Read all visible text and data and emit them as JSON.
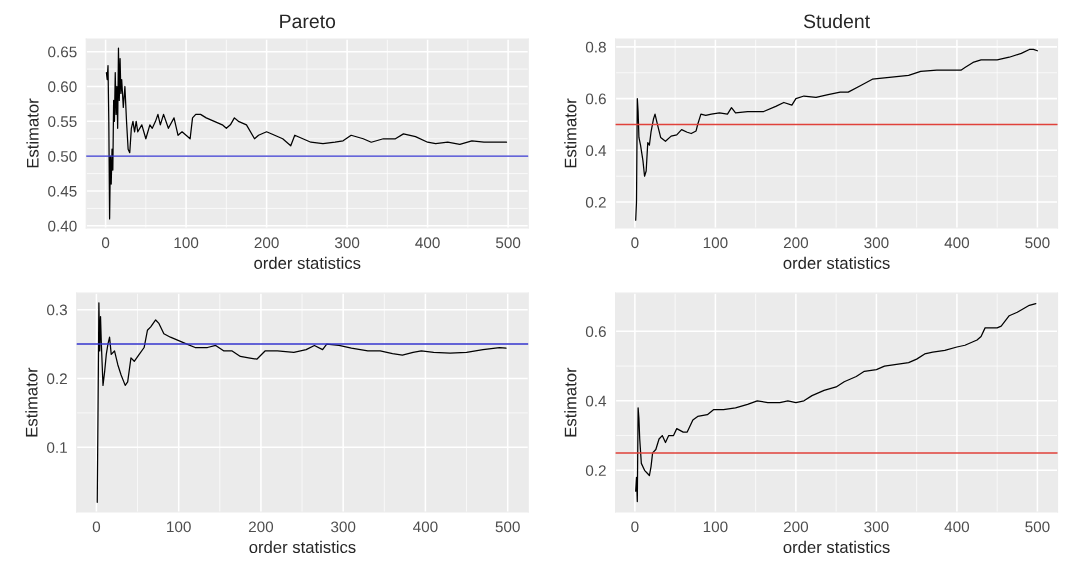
{
  "chart_data": [
    {
      "type": "line",
      "title": "Pareto",
      "xlabel": "order statistics",
      "ylabel": "Estimator",
      "xlim": [
        -24,
        525
      ],
      "ylim": [
        0.397,
        0.668
      ],
      "xticks": [
        0,
        100,
        200,
        300,
        400,
        500
      ],
      "yticks": [
        {
          "value": 0.4,
          "label": "0.40"
        },
        {
          "value": 0.45,
          "label": "0.45"
        },
        {
          "value": 0.5,
          "label": "0.50"
        },
        {
          "value": 0.55,
          "label": "0.55"
        },
        {
          "value": 0.6,
          "label": "0.60"
        },
        {
          "value": 0.65,
          "label": "0.65"
        }
      ],
      "grid": true,
      "series": [
        {
          "color": "#000000",
          "x": [
            1,
            2,
            3,
            4,
            5,
            6,
            7,
            8,
            9,
            10,
            11,
            12,
            13,
            14,
            15,
            16,
            17,
            18,
            19,
            20,
            22,
            24,
            26,
            28,
            30,
            32,
            34,
            36,
            38,
            40,
            45,
            50,
            55,
            58,
            62,
            65,
            68,
            72,
            78,
            85,
            90,
            95,
            100,
            105,
            108,
            112,
            118,
            125,
            135,
            145,
            150,
            155,
            160,
            165,
            175,
            185,
            190,
            200,
            210,
            220,
            230,
            235,
            245,
            255,
            270,
            285,
            295,
            305,
            320,
            330,
            345,
            360,
            370,
            385,
            400,
            410,
            425,
            440,
            455,
            470,
            485,
            498
          ],
          "values": [
            0.62,
            0.61,
            0.63,
            0.55,
            0.41,
            0.5,
            0.46,
            0.51,
            0.48,
            0.58,
            0.55,
            0.62,
            0.56,
            0.6,
            0.54,
            0.655,
            0.58,
            0.64,
            0.59,
            0.61,
            0.57,
            0.6,
            0.55,
            0.51,
            0.505,
            0.54,
            0.55,
            0.535,
            0.55,
            0.535,
            0.545,
            0.525,
            0.545,
            0.54,
            0.55,
            0.56,
            0.545,
            0.56,
            0.54,
            0.555,
            0.53,
            0.535,
            0.53,
            0.525,
            0.555,
            0.56,
            0.56,
            0.555,
            0.55,
            0.545,
            0.54,
            0.545,
            0.555,
            0.55,
            0.545,
            0.525,
            0.53,
            0.535,
            0.53,
            0.525,
            0.515,
            0.53,
            0.525,
            0.52,
            0.518,
            0.52,
            0.522,
            0.53,
            0.525,
            0.52,
            0.525,
            0.525,
            0.532,
            0.528,
            0.52,
            0.518,
            0.52,
            0.517,
            0.522,
            0.52,
            0.52,
            0.52
          ]
        }
      ],
      "ref_lines": [
        {
          "axis": "y",
          "value": 0.5,
          "color": "#3333cc"
        }
      ]
    },
    {
      "type": "line",
      "title": "Student",
      "xlabel": "order statistics",
      "ylabel": "Estimator",
      "xlim": [
        -24,
        525
      ],
      "ylim": [
        0.1,
        0.83
      ],
      "xticks": [
        0,
        100,
        200,
        300,
        400,
        500
      ],
      "yticks": [
        0.2,
        0.4,
        0.6,
        0.8
      ],
      "grid": true,
      "series": [
        {
          "color": "#000000",
          "x": [
            1,
            2,
            3,
            4,
            5,
            7,
            10,
            12,
            14,
            16,
            18,
            20,
            23,
            25,
            28,
            32,
            38,
            45,
            52,
            58,
            65,
            70,
            76,
            78,
            82,
            88,
            95,
            105,
            115,
            120,
            125,
            140,
            160,
            175,
            185,
            195,
            200,
            210,
            225,
            240,
            255,
            265,
            280,
            295,
            310,
            325,
            340,
            355,
            375,
            395,
            405,
            410,
            420,
            430,
            450,
            465,
            480,
            490,
            495,
            500
          ],
          "values": [
            0.13,
            0.2,
            0.6,
            0.55,
            0.45,
            0.42,
            0.36,
            0.3,
            0.32,
            0.43,
            0.42,
            0.47,
            0.52,
            0.54,
            0.5,
            0.45,
            0.435,
            0.455,
            0.46,
            0.48,
            0.47,
            0.465,
            0.475,
            0.5,
            0.54,
            0.535,
            0.54,
            0.545,
            0.54,
            0.565,
            0.545,
            0.55,
            0.55,
            0.57,
            0.585,
            0.575,
            0.6,
            0.61,
            0.605,
            0.615,
            0.625,
            0.625,
            0.65,
            0.675,
            0.68,
            0.685,
            0.69,
            0.705,
            0.71,
            0.71,
            0.71,
            0.72,
            0.74,
            0.75,
            0.75,
            0.76,
            0.775,
            0.79,
            0.79,
            0.785
          ]
        }
      ],
      "ref_lines": [
        {
          "axis": "y",
          "value": 0.5,
          "color": "#e0413a"
        }
      ]
    },
    {
      "type": "line",
      "xlabel": "order statistics",
      "ylabel": "Estimator",
      "xlim": [
        -24,
        525
      ],
      "ylim": [
        0.006,
        0.324
      ],
      "xticks": [
        0,
        100,
        200,
        300,
        400,
        500
      ],
      "yticks": [
        0.1,
        0.2,
        0.3
      ],
      "grid": true,
      "series": [
        {
          "color": "#000000",
          "x": [
            1,
            2,
            3,
            4,
            5,
            6,
            8,
            10,
            12,
            14,
            16,
            18,
            22,
            26,
            30,
            35,
            38,
            42,
            46,
            52,
            58,
            62,
            66,
            72,
            76,
            82,
            90,
            100,
            110,
            120,
            135,
            145,
            155,
            165,
            175,
            185,
            195,
            205,
            220,
            240,
            255,
            265,
            275,
            280,
            295,
            310,
            330,
            345,
            360,
            372,
            385,
            395,
            410,
            430,
            450,
            470,
            490,
            498
          ],
          "values": [
            0.02,
            0.16,
            0.31,
            0.24,
            0.29,
            0.25,
            0.19,
            0.21,
            0.235,
            0.25,
            0.26,
            0.235,
            0.24,
            0.22,
            0.205,
            0.19,
            0.195,
            0.23,
            0.225,
            0.235,
            0.245,
            0.27,
            0.275,
            0.285,
            0.28,
            0.265,
            0.26,
            0.255,
            0.25,
            0.245,
            0.245,
            0.248,
            0.24,
            0.24,
            0.232,
            0.23,
            0.228,
            0.24,
            0.24,
            0.238,
            0.242,
            0.248,
            0.242,
            0.25,
            0.248,
            0.244,
            0.24,
            0.24,
            0.236,
            0.234,
            0.238,
            0.24,
            0.238,
            0.237,
            0.238,
            0.242,
            0.245,
            0.244
          ]
        }
      ],
      "ref_lines": [
        {
          "axis": "y",
          "value": 0.25,
          "color": "#3333cc"
        }
      ]
    },
    {
      "type": "line",
      "xlabel": "order statistics",
      "ylabel": "Estimator",
      "xlim": [
        -24,
        525
      ],
      "ylim": [
        0.08,
        0.71
      ],
      "xticks": [
        0,
        100,
        200,
        300,
        400,
        500
      ],
      "yticks": [
        0.2,
        0.4,
        0.6
      ],
      "grid": true,
      "series": [
        {
          "color": "#000000",
          "x": [
            1,
            2,
            3,
            4,
            5,
            6,
            8,
            12,
            16,
            18,
            20,
            22,
            26,
            30,
            34,
            38,
            42,
            48,
            52,
            60,
            65,
            72,
            78,
            90,
            98,
            110,
            125,
            140,
            152,
            165,
            180,
            190,
            200,
            210,
            220,
            235,
            250,
            260,
            275,
            285,
            300,
            310,
            325,
            340,
            350,
            360,
            370,
            385,
            400,
            410,
            425,
            430,
            435,
            450,
            455,
            465,
            475,
            490,
            498
          ],
          "values": [
            0.14,
            0.18,
            0.11,
            0.38,
            0.35,
            0.29,
            0.22,
            0.2,
            0.19,
            0.185,
            0.21,
            0.25,
            0.26,
            0.29,
            0.3,
            0.28,
            0.3,
            0.3,
            0.32,
            0.31,
            0.31,
            0.345,
            0.355,
            0.36,
            0.375,
            0.375,
            0.38,
            0.39,
            0.4,
            0.395,
            0.395,
            0.4,
            0.395,
            0.4,
            0.415,
            0.43,
            0.44,
            0.455,
            0.47,
            0.485,
            0.49,
            0.5,
            0.505,
            0.51,
            0.52,
            0.535,
            0.54,
            0.545,
            0.555,
            0.56,
            0.575,
            0.585,
            0.61,
            0.61,
            0.615,
            0.645,
            0.655,
            0.675,
            0.68
          ]
        }
      ],
      "ref_lines": [
        {
          "axis": "y",
          "value": 0.25,
          "color": "#e0413a"
        }
      ]
    }
  ]
}
